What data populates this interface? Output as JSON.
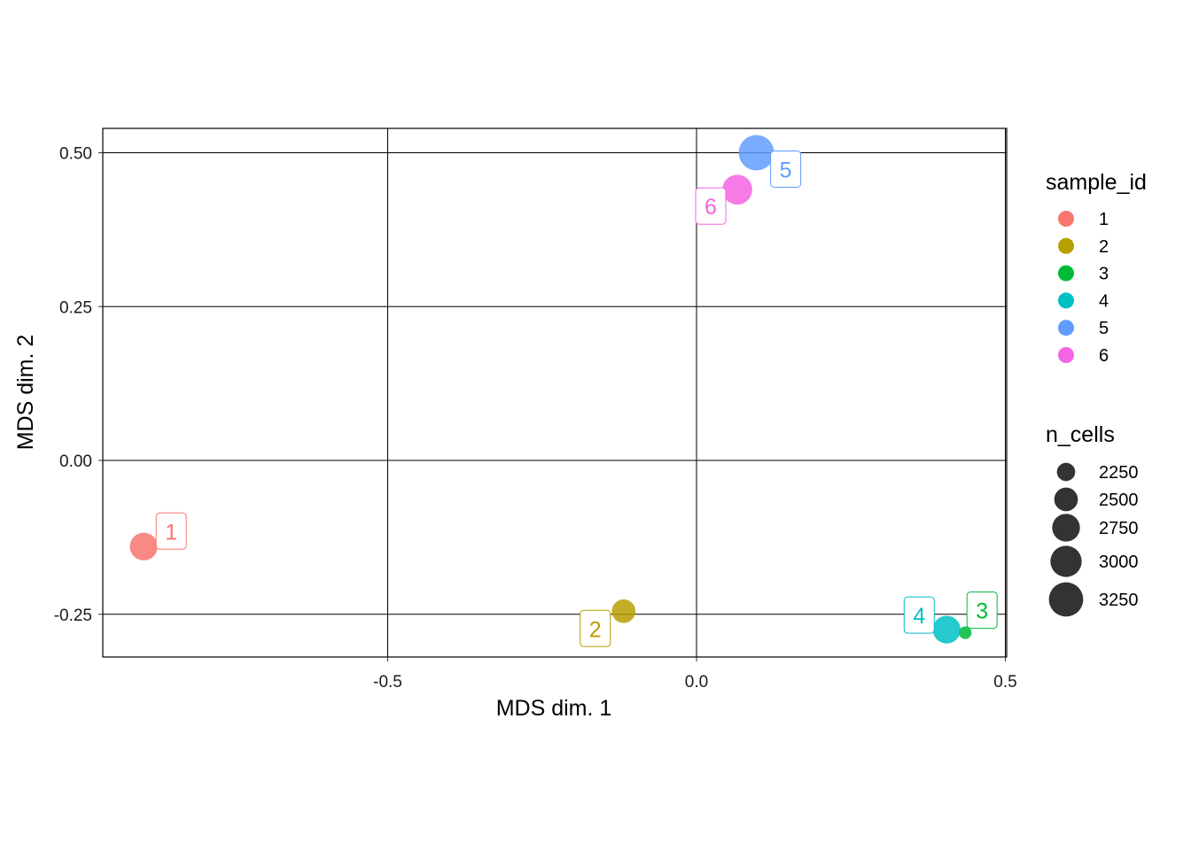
{
  "chart_data": {
    "type": "scatter",
    "title": "",
    "xlabel": "MDS dim. 1",
    "ylabel": "MDS dim. 2",
    "xlim": [
      -0.965,
      0.505
    ],
    "ylim": [
      -0.32,
      0.54
    ],
    "x_ticks": [
      -0.5,
      0.0,
      0.5
    ],
    "x_tick_labels": [
      "-0.5",
      "0.0",
      "0.5"
    ],
    "y_ticks": [
      -0.25,
      0.0,
      0.25,
      0.5
    ],
    "y_tick_labels": [
      "-0.25",
      "0.00",
      "0.25",
      "0.50"
    ],
    "grid": true,
    "legend_position": "right",
    "points": [
      {
        "sample_id": "1",
        "x": -0.895,
        "y": -0.14,
        "n_cells": 2750,
        "color": "#F8766D"
      },
      {
        "sample_id": "2",
        "x": -0.118,
        "y": -0.245,
        "n_cells": 2500,
        "color": "#B79F00"
      },
      {
        "sample_id": "3",
        "x": 0.435,
        "y": -0.28,
        "n_cells": 2080,
        "color": "#00BA38"
      },
      {
        "sample_id": "4",
        "x": 0.405,
        "y": -0.275,
        "n_cells": 2750,
        "color": "#00BFC4"
      },
      {
        "sample_id": "5",
        "x": 0.097,
        "y": 0.5,
        "n_cells": 3350,
        "color": "#619CFF"
      },
      {
        "sample_id": "6",
        "x": 0.066,
        "y": 0.44,
        "n_cells": 2900,
        "color": "#F564E3"
      }
    ],
    "legend_color": {
      "title": "sample_id",
      "entries": [
        {
          "label": "1",
          "color": "#F8766D"
        },
        {
          "label": "2",
          "color": "#B79F00"
        },
        {
          "label": "3",
          "color": "#00BA38"
        },
        {
          "label": "4",
          "color": "#00BFC4"
        },
        {
          "label": "5",
          "color": "#619CFF"
        },
        {
          "label": "6",
          "color": "#F564E3"
        }
      ]
    },
    "legend_size": {
      "title": "n_cells",
      "entries": [
        {
          "label": "2250",
          "value": 2250
        },
        {
          "label": "2500",
          "value": 2500
        },
        {
          "label": "2750",
          "value": 2750
        },
        {
          "label": "3000",
          "value": 3000
        },
        {
          "label": "3250",
          "value": 3250
        }
      ]
    }
  }
}
